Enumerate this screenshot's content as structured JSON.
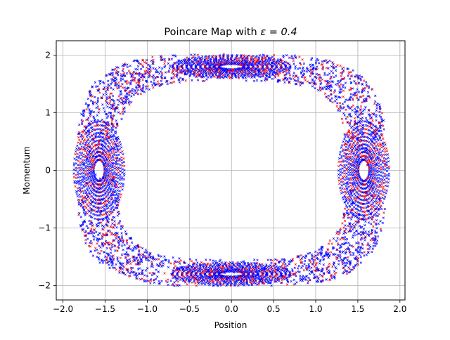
{
  "chart_data": {
    "type": "scatter",
    "title_prefix": "Poincare Map with ",
    "title_math": "ε = 0.4",
    "xlabel": "Position",
    "ylabel": "Momentum",
    "xlim": [
      -2.08,
      2.06
    ],
    "ylim": [
      -2.25,
      2.25
    ],
    "xticks": [
      -2.0,
      -1.5,
      -1.0,
      -0.5,
      0.0,
      0.5,
      1.0,
      1.5,
      2.0
    ],
    "xtick_labels": [
      "−2.0",
      "−1.5",
      "−1.0",
      "−0.5",
      "0.0",
      "0.5",
      "1.0",
      "1.5",
      "2.0"
    ],
    "yticks": [
      -2,
      -1,
      0,
      1,
      2
    ],
    "ytick_labels": [
      "−2",
      "−1",
      "0",
      "1",
      "2"
    ],
    "grid": true,
    "series": [
      {
        "color": "#ff0000",
        "marker": "x"
      },
      {
        "color": "#0000ff",
        "marker": "x"
      }
    ],
    "islands": [
      {
        "center": [
          -1.571,
          0.0
        ],
        "half_width": 0.3,
        "half_height": 0.85
      },
      {
        "center": [
          1.571,
          0.0
        ],
        "half_width": 0.3,
        "half_height": 0.85
      },
      {
        "center": [
          0.0,
          1.8
        ],
        "half_width": 0.7,
        "half_height": 0.2
      },
      {
        "center": [
          0.0,
          -1.8
        ],
        "half_width": 0.7,
        "half_height": 0.2
      }
    ],
    "chaotic_band": {
      "inner_x": 1.35,
      "outer_x": 1.83,
      "inner_y": 1.55,
      "outer_y": 2.02
    }
  }
}
